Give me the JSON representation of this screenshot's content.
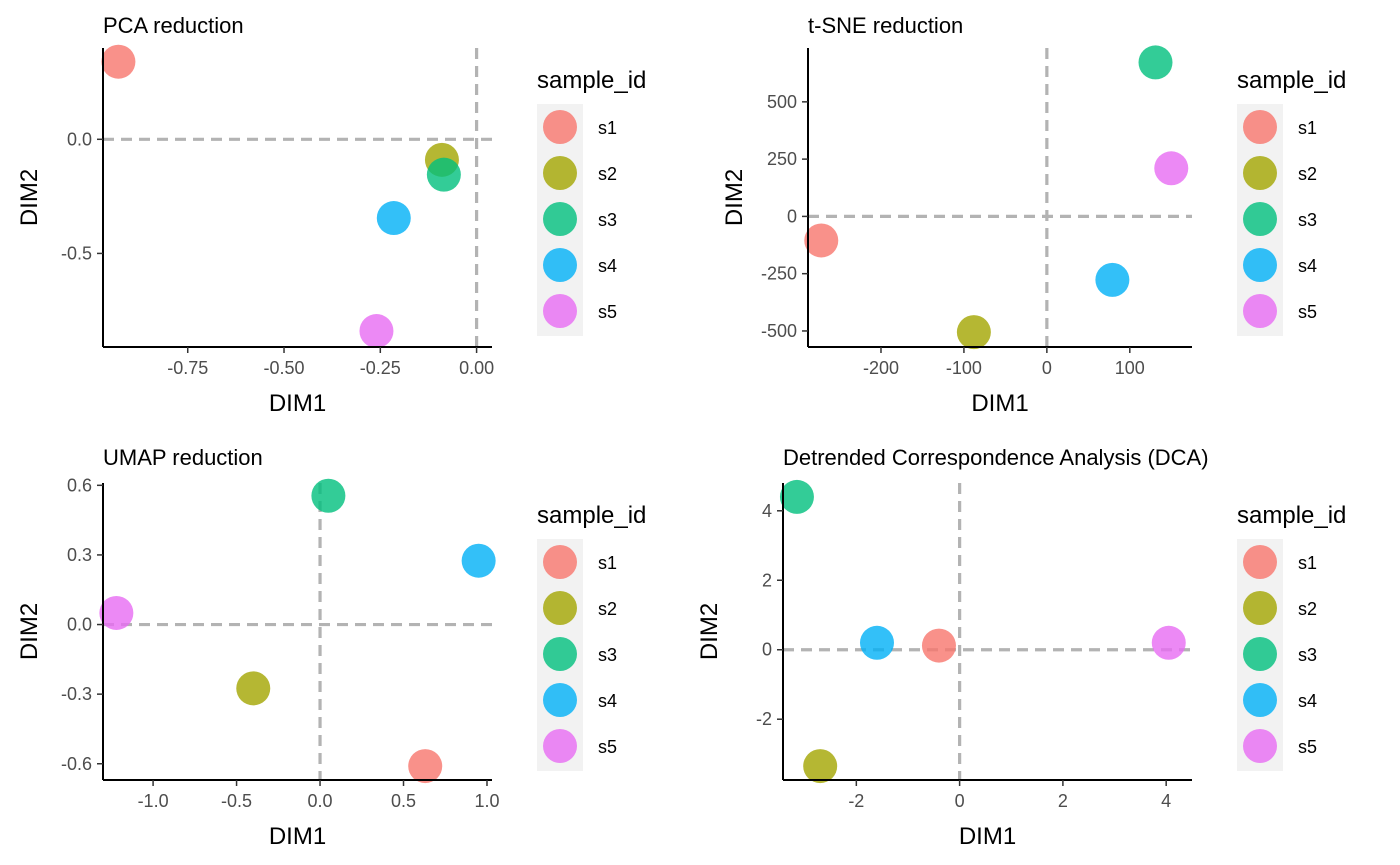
{
  "legend": {
    "title": "sample_id",
    "entries": [
      {
        "label": "s1",
        "color": "#F8766D"
      },
      {
        "label": "s2",
        "color": "#A3A500"
      },
      {
        "label": "s3",
        "color": "#00BF7D"
      },
      {
        "label": "s4",
        "color": "#00B0F6"
      },
      {
        "label": "s5",
        "color": "#E76BF3"
      }
    ]
  },
  "chart_data": [
    {
      "type": "scatter",
      "title": "PCA reduction",
      "xlabel": "DIM1",
      "ylabel": "DIM2",
      "xlim": [
        -0.97,
        0.04
      ],
      "ylim": [
        -0.91,
        0.4
      ],
      "xticks": [
        {
          "value": -0.75,
          "label": "-0.75"
        },
        {
          "value": -0.5,
          "label": "-0.50"
        },
        {
          "value": -0.25,
          "label": "-0.25"
        },
        {
          "value": 0,
          "label": "0.00"
        }
      ],
      "yticks": [
        {
          "value": 0,
          "label": "0.0"
        },
        {
          "value": -0.5,
          "label": "-0.5"
        }
      ],
      "points": [
        {
          "label": "s1",
          "x": -0.93,
          "y": 0.34
        },
        {
          "label": "s2",
          "x": -0.09,
          "y": -0.09
        },
        {
          "label": "s3",
          "x": -0.085,
          "y": -0.155
        },
        {
          "label": "s4",
          "x": -0.215,
          "y": -0.345
        },
        {
          "label": "s5",
          "x": -0.26,
          "y": -0.84
        }
      ],
      "reference_lines": {
        "x": 0,
        "y": 0
      },
      "grid": false,
      "legend_position": "right"
    },
    {
      "type": "scatter",
      "title": "t-SNE reduction",
      "xlabel": "DIM1",
      "ylabel": "DIM2",
      "xlim": [
        -288,
        175
      ],
      "ylim": [
        -570,
        735
      ],
      "xticks": [
        {
          "value": -200,
          "label": "-200"
        },
        {
          "value": -100,
          "label": "-100"
        },
        {
          "value": 0,
          "label": "0"
        },
        {
          "value": 100,
          "label": "100"
        }
      ],
      "yticks": [
        {
          "value": 500,
          "label": "500"
        },
        {
          "value": 250,
          "label": "250"
        },
        {
          "value": 0,
          "label": "0"
        },
        {
          "value": -250,
          "label": "-250"
        },
        {
          "value": -500,
          "label": "-500"
        }
      ],
      "points": [
        {
          "label": "s1",
          "x": -272,
          "y": -105
        },
        {
          "label": "s2",
          "x": -88,
          "y": -505
        },
        {
          "label": "s3",
          "x": 131,
          "y": 672
        },
        {
          "label": "s4",
          "x": 79,
          "y": -277
        },
        {
          "label": "s5",
          "x": 150,
          "y": 210
        }
      ],
      "reference_lines": {
        "x": 0,
        "y": 0
      },
      "grid": false,
      "legend_position": "right"
    },
    {
      "type": "scatter",
      "title": "UMAP reduction",
      "xlabel": "DIM1",
      "ylabel": "DIM2",
      "xlim": [
        -1.3,
        1.03
      ],
      "ylim": [
        -0.67,
        0.61
      ],
      "xticks": [
        {
          "value": -1,
          "label": "-1.0"
        },
        {
          "value": -0.5,
          "label": "-0.5"
        },
        {
          "value": 0,
          "label": "0.0"
        },
        {
          "value": 0.5,
          "label": "0.5"
        },
        {
          "value": 1,
          "label": "1.0"
        }
      ],
      "yticks": [
        {
          "value": 0.6,
          "label": "0.6"
        },
        {
          "value": 0.3,
          "label": "0.3"
        },
        {
          "value": 0,
          "label": "0.0"
        },
        {
          "value": -0.3,
          "label": "-0.3"
        },
        {
          "value": -0.6,
          "label": "-0.6"
        }
      ],
      "points": [
        {
          "label": "s1",
          "x": 0.63,
          "y": -0.61
        },
        {
          "label": "s2",
          "x": -0.4,
          "y": -0.275
        },
        {
          "label": "s3",
          "x": 0.05,
          "y": 0.555
        },
        {
          "label": "s4",
          "x": 0.95,
          "y": 0.275
        },
        {
          "label": "s5",
          "x": -1.22,
          "y": 0.05
        }
      ],
      "reference_lines": {
        "x": 0,
        "y": 0
      },
      "grid": false,
      "legend_position": "right"
    },
    {
      "type": "scatter",
      "title": "Detrended Correspondence Analysis (DCA)",
      "xlabel": "DIM1",
      "ylabel": "DIM2",
      "xlim": [
        -3.42,
        4.5
      ],
      "ylim": [
        -3.75,
        4.8
      ],
      "xticks": [
        {
          "value": -2,
          "label": "-2"
        },
        {
          "value": 0,
          "label": "0"
        },
        {
          "value": 2,
          "label": "2"
        },
        {
          "value": 4,
          "label": "4"
        }
      ],
      "yticks": [
        {
          "value": 4,
          "label": "4"
        },
        {
          "value": 2,
          "label": "2"
        },
        {
          "value": 0,
          "label": "0"
        },
        {
          "value": -2,
          "label": "-2"
        }
      ],
      "points": [
        {
          "label": "s1",
          "x": -0.4,
          "y": 0.12
        },
        {
          "label": "s2",
          "x": -2.7,
          "y": -3.35
        },
        {
          "label": "s3",
          "x": -3.15,
          "y": 4.4
        },
        {
          "label": "s4",
          "x": -1.6,
          "y": 0.2
        },
        {
          "label": "s5",
          "x": 4.05,
          "y": 0.2
        }
      ],
      "reference_lines": {
        "x": 0,
        "y": 0
      },
      "grid": false,
      "legend_position": "right"
    }
  ]
}
